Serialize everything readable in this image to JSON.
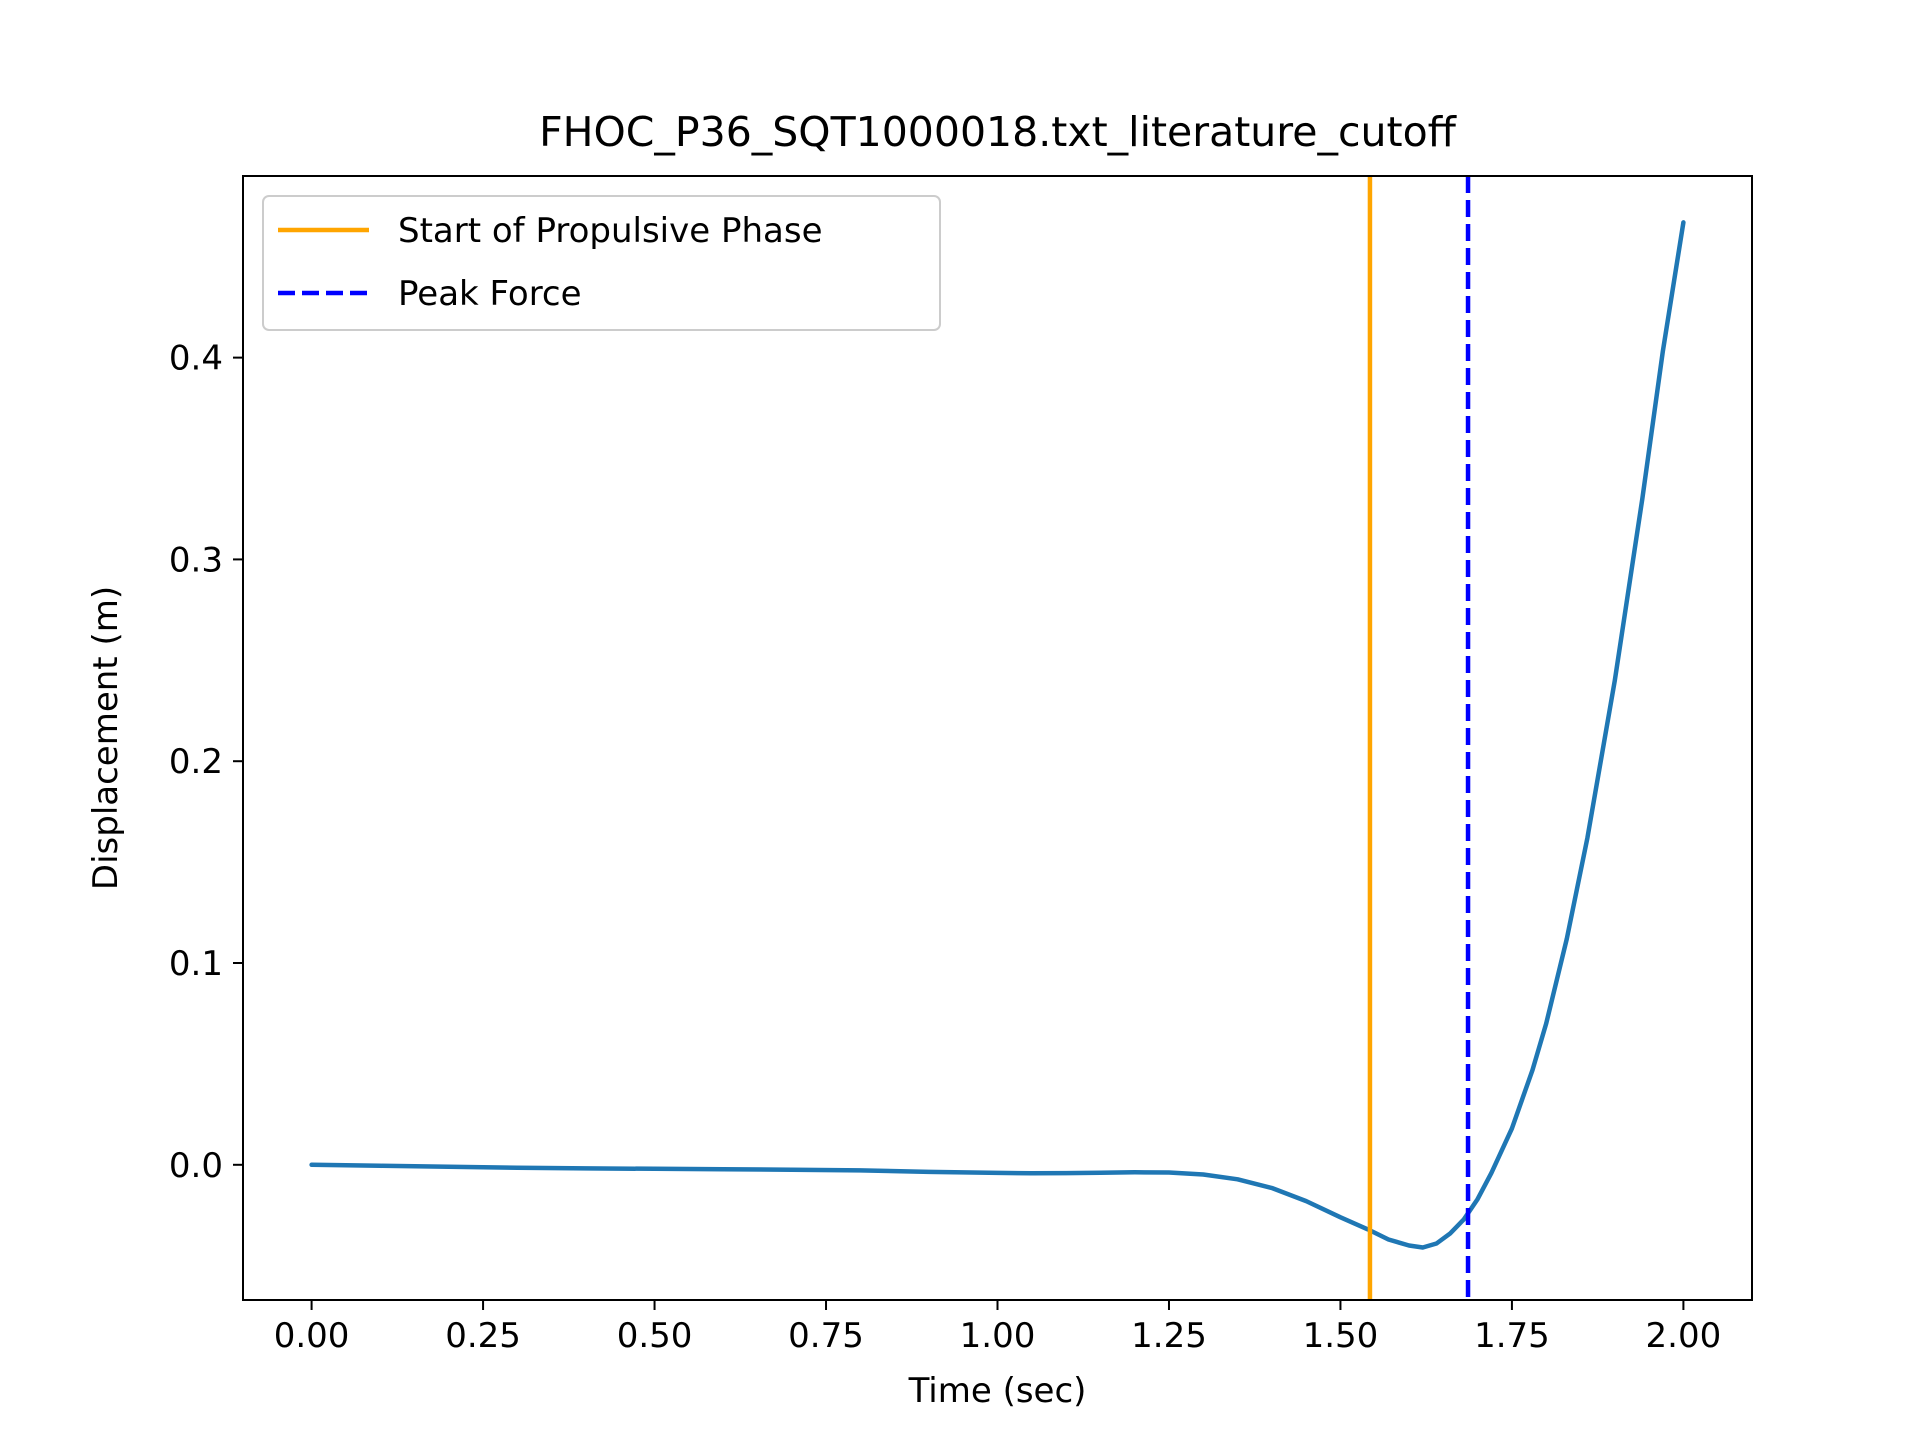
{
  "chart_data": {
    "type": "line",
    "title": "FHOC_P36_SQT1000018.txt_literature_cutoff",
    "xlabel": "Time (sec)",
    "ylabel": "Displacement (m)",
    "xlim": [
      -0.1,
      2.1
    ],
    "ylim": [
      -0.067,
      0.49
    ],
    "xticks": [
      0.0,
      0.25,
      0.5,
      0.75,
      1.0,
      1.25,
      1.5,
      1.75,
      2.0
    ],
    "xtick_labels": [
      "0.00",
      "0.25",
      "0.50",
      "0.75",
      "1.00",
      "1.25",
      "1.50",
      "1.75",
      "2.00"
    ],
    "yticks": [
      0.0,
      0.1,
      0.2,
      0.3,
      0.4
    ],
    "ytick_labels": [
      "0.0",
      "0.1",
      "0.2",
      "0.3",
      "0.4"
    ],
    "grid": false,
    "legend_position": "top-left",
    "series": [
      {
        "color": "#1f77b4",
        "x": [
          0.0,
          0.1,
          0.2,
          0.3,
          0.4,
          0.5,
          0.6,
          0.7,
          0.8,
          0.9,
          1.0,
          1.05,
          1.1,
          1.15,
          1.2,
          1.25,
          1.3,
          1.35,
          1.4,
          1.45,
          1.5,
          1.54,
          1.57,
          1.6,
          1.62,
          1.64,
          1.66,
          1.68,
          1.7,
          1.72,
          1.75,
          1.78,
          1.8,
          1.83,
          1.86,
          1.9,
          1.94,
          1.97,
          2.0
        ],
        "y": [
          0.0,
          -0.0005,
          -0.001,
          -0.0015,
          -0.0018,
          -0.002,
          -0.0022,
          -0.0025,
          -0.0028,
          -0.0035,
          -0.004,
          -0.0042,
          -0.0041,
          -0.0039,
          -0.0037,
          -0.0038,
          -0.0048,
          -0.0072,
          -0.0115,
          -0.018,
          -0.026,
          -0.032,
          -0.037,
          -0.04,
          -0.041,
          -0.039,
          -0.034,
          -0.027,
          -0.017,
          -0.004,
          0.018,
          0.047,
          0.07,
          0.112,
          0.162,
          0.24,
          0.33,
          0.403,
          0.467
        ]
      }
    ],
    "vlines": [
      {
        "name": "Start of Propulsive Phase",
        "x": 1.543,
        "color": "#ffa500",
        "style": "solid"
      },
      {
        "name": "Peak Force",
        "x": 1.686,
        "color": "#0000ff",
        "style": "dashed"
      }
    ]
  }
}
